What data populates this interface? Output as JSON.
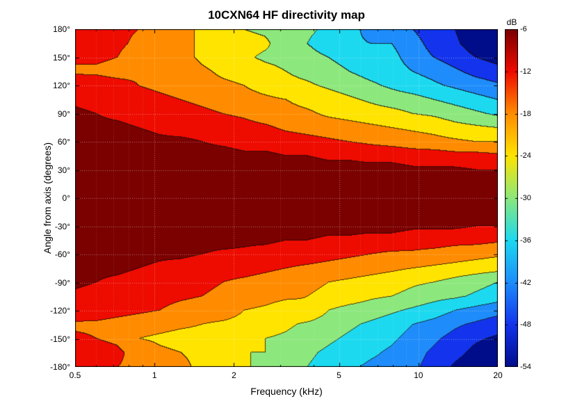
{
  "title": "10CXN64 HF directivity map",
  "chart_data": {
    "type": "heatmap",
    "subtype": "filled-contour-directivity-map",
    "title": "10CXN64 HF directivity map",
    "xlabel": "Frequency (kHz)",
    "ylabel": "Angle from axis (degrees)",
    "x_scale": "log",
    "x_range": [
      0.5,
      20
    ],
    "y_range": [
      -180,
      180
    ],
    "grid": true,
    "x_ticks": [
      {
        "value": 0.5,
        "label": "0.5"
      },
      {
        "value": 1,
        "label": "1"
      },
      {
        "value": 2,
        "label": "2"
      },
      {
        "value": 5,
        "label": "5"
      },
      {
        "value": 10,
        "label": "10"
      },
      {
        "value": 20,
        "label": "20"
      }
    ],
    "x_minor_ticks": [
      0.6,
      0.7,
      0.8,
      0.9,
      3,
      4,
      6,
      7,
      8,
      9
    ],
    "y_ticks": [
      {
        "value": 180,
        "label": "180°"
      },
      {
        "value": 150,
        "label": "150°"
      },
      {
        "value": 120,
        "label": "120°"
      },
      {
        "value": 90,
        "label": "90°"
      },
      {
        "value": 60,
        "label": "60°"
      },
      {
        "value": 30,
        "label": "30°"
      },
      {
        "value": 0,
        "label": "0°"
      },
      {
        "value": -30,
        "label": "-30°"
      },
      {
        "value": -60,
        "label": "-60°"
      },
      {
        "value": -90,
        "label": "-90°"
      },
      {
        "value": -120,
        "label": "-120°"
      },
      {
        "value": -150,
        "label": "-150°"
      },
      {
        "value": -180,
        "label": "-180°"
      }
    ],
    "contour_levels_db": [
      -54,
      -48,
      -42,
      -36,
      -30,
      -24,
      -18,
      -12,
      -6
    ],
    "band_colors": [
      "#000d8a",
      "#1334ec",
      "#1e8cfa",
      "#1cd9f0",
      "#8ce87c",
      "#ffe400",
      "#ff8c00",
      "#ee0b00",
      "#7b0000"
    ],
    "colorbar": {
      "label": "dB",
      "min": -54,
      "max": -6,
      "tick_labels": [
        "-6",
        "-12",
        "-18",
        "-24",
        "-30",
        "-36",
        "-42",
        "-48",
        "-54"
      ]
    },
    "frequencies_khz": [
      0.5,
      0.6,
      0.72,
      0.87,
      1.05,
      1.26,
      1.51,
      1.82,
      2.18,
      2.63,
      3.16,
      3.79,
      4.56,
      5.48,
      6.59,
      7.93,
      9.53,
      11.46,
      13.78,
      16.56,
      19.91
    ],
    "angles_deg": [
      -180,
      -165,
      -150,
      -135,
      -120,
      -105,
      -90,
      -75,
      -60,
      -45,
      -30,
      -15,
      0,
      15,
      30,
      45,
      60,
      75,
      90,
      105,
      120,
      135,
      150,
      165,
      180
    ],
    "values_db": [
      [
        -10,
        -9,
        -11,
        -13,
        -8,
        -7,
        -5,
        -4,
        -3,
        -2,
        -1,
        0,
        0,
        0,
        -1,
        -2,
        -3,
        -4,
        -5,
        -7,
        -8,
        -13,
        -11,
        -9,
        -10
      ],
      [
        -11,
        -10,
        -12,
        -13,
        -9,
        -8,
        -6,
        -5,
        -3,
        -2,
        -1,
        0,
        0,
        0,
        -1,
        -2,
        -4,
        -5,
        -6,
        -8,
        -9,
        -13,
        -11,
        -10,
        -10
      ],
      [
        -12,
        -11,
        -13,
        -14,
        -10,
        -9,
        -7,
        -5,
        -4,
        -2,
        -1,
        0,
        0,
        0,
        -1,
        -2,
        -4,
        -5,
        -7,
        -9,
        -10,
        -14,
        -12,
        -11,
        -11
      ],
      [
        -13,
        -14,
        -18,
        -15,
        -11,
        -9,
        -8,
        -6,
        -4,
        -3,
        -1,
        0,
        0,
        -1,
        -2,
        -3,
        -4,
        -6,
        -8,
        -10,
        -12,
        -13,
        -15,
        -13,
        -12
      ],
      [
        -15,
        -17,
        -19,
        -16,
        -12,
        -10,
        -9,
        -7,
        -5,
        -3,
        -2,
        -1,
        0,
        0,
        -2,
        -3,
        -5,
        -7,
        -9,
        -11,
        -13,
        -12,
        -14,
        -16,
        -15
      ],
      [
        -17,
        -18,
        -20,
        -17,
        -14,
        -11,
        -10,
        -8,
        -5,
        -3,
        -2,
        -1,
        0,
        -1,
        -2,
        -4,
        -5,
        -8,
        -10,
        -12,
        -14,
        -15,
        -16,
        -18,
        -16
      ],
      [
        -19,
        -19,
        -20,
        -18,
        -15,
        -12,
        -11,
        -9,
        -6,
        -4,
        -2,
        -1,
        0,
        -1,
        -2,
        -4,
        -6,
        -8,
        -11,
        -13,
        -16,
        -17,
        -19,
        -18,
        -19
      ],
      [
        -21,
        -20,
        -21,
        -19,
        -15,
        -13,
        -12,
        -10,
        -7,
        -4,
        -2,
        -1,
        0,
        -1,
        -2,
        -4,
        -7,
        -9,
        -12,
        -14,
        -17,
        -19,
        -21,
        -20,
        -22
      ],
      [
        -23,
        -24,
        -22,
        -20,
        -18,
        -15,
        -13,
        -10,
        -7,
        -5,
        -2,
        -1,
        0,
        -1,
        -3,
        -5,
        -8,
        -10,
        -13,
        -16,
        -18,
        -20,
        -23,
        -22,
        -24
      ],
      [
        -26,
        -24,
        -24,
        -21,
        -19,
        -16,
        -14,
        -11,
        -8,
        -5,
        -3,
        -1,
        0,
        -1,
        -3,
        -5,
        -8,
        -11,
        -15,
        -17,
        -20,
        -22,
        -25,
        -23,
        -25
      ],
      [
        -28,
        -26,
        -25,
        -23,
        -21,
        -17,
        -15,
        -12,
        -9,
        -6,
        -3,
        -1,
        0,
        -1,
        -3,
        -6,
        -9,
        -13,
        -16,
        -18,
        -22,
        -24,
        -26,
        -27,
        -28
      ],
      [
        -30,
        -29,
        -27,
        -25,
        -19,
        -18,
        -16,
        -13,
        -9,
        -6,
        -3,
        -1,
        0,
        -1,
        -3,
        -6,
        -10,
        -14,
        -17,
        -20,
        -23,
        -26,
        -28,
        -30,
        -29
      ],
      [
        -32,
        -31,
        -29,
        -27,
        -24,
        -20,
        -18,
        -14,
        -10,
        -7,
        -4,
        -1,
        0,
        -1,
        -4,
        -7,
        -11,
        -15,
        -19,
        -21,
        -25,
        -28,
        -30,
        -33,
        -31
      ],
      [
        -35,
        -33,
        -31,
        -29,
        -26,
        -21,
        -19,
        -15,
        -11,
        -7,
        -4,
        -1,
        0,
        -1,
        -4,
        -7,
        -12,
        -16,
        -20,
        -23,
        -27,
        -30,
        -32,
        -35,
        -34
      ],
      [
        -37,
        -35,
        -33,
        -31,
        -27,
        -23,
        -20,
        -16,
        -12,
        -8,
        -4,
        -2,
        0,
        -2,
        -4,
        -8,
        -13,
        -17,
        -21,
        -25,
        -29,
        -32,
        -35,
        -36,
        -38
      ],
      [
        -38,
        -37,
        -35,
        -33,
        -29,
        -24,
        -21,
        -17,
        -13,
        -8,
        -4,
        -2,
        0,
        -2,
        -4,
        -8,
        -14,
        -18,
        -22,
        -27,
        -31,
        -33,
        -34,
        -36,
        -38
      ],
      [
        -41,
        -40,
        -38,
        -36,
        -31,
        -26,
        -23,
        -18,
        -13,
        -9,
        -5,
        -2,
        0,
        -2,
        -5,
        -9,
        -15,
        -19,
        -24,
        -28,
        -33,
        -36,
        -39,
        -40,
        -42
      ],
      [
        -44,
        -43,
        -41,
        -38,
        -33,
        -28,
        -24,
        -19,
        -14,
        -9,
        -5,
        -2,
        0,
        -2,
        -5,
        -9,
        -16,
        -20,
        -25,
        -30,
        -35,
        -38,
        -42,
        -44,
        -45
      ],
      [
        -49,
        -46,
        -44,
        -41,
        -36,
        -29,
        -26,
        -20,
        -15,
        -10,
        -5,
        -2,
        0,
        -2,
        -5,
        -10,
        -17,
        -22,
        -27,
        -32,
        -37,
        -41,
        -45,
        -47,
        -48
      ],
      [
        -52,
        -50,
        -47,
        -43,
        -38,
        -31,
        -28,
        -21,
        -16,
        -10,
        -6,
        -2,
        0,
        -2,
        -6,
        -10,
        -18,
        -23,
        -29,
        -34,
        -39,
        -44,
        -48,
        -51,
        -52
      ],
      [
        -55,
        -53,
        -49,
        -45,
        -40,
        -33,
        -30,
        -22,
        -17,
        -11,
        -6,
        -3,
        0,
        -2,
        -6,
        -11,
        -18,
        -24,
        -31,
        -36,
        -41,
        -46,
        -50,
        -54,
        -55
      ]
    ]
  },
  "layout_colors": {
    "grid_major": "rgba(255,255,255,0.45)",
    "grid_minor": "rgba(255,255,255,0.20)",
    "contour_line": "rgba(25,12,8,0.80)",
    "axis": "#000000"
  }
}
